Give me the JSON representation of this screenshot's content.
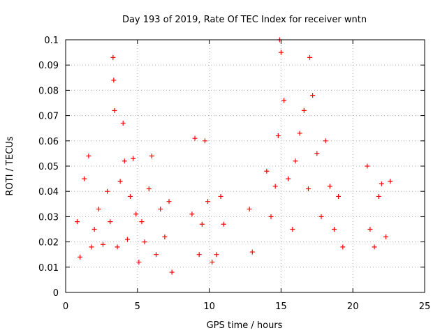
{
  "chart_data": {
    "type": "scatter",
    "title": "Day 193 of 2019, Rate Of TEC Index for receiver wntn",
    "xlabel": "GPS time / hours",
    "ylabel": "ROTI / TECUs",
    "xlim": [
      0,
      25
    ],
    "ylim": [
      0,
      0.1
    ],
    "x_ticks": [
      "0",
      "5",
      "10",
      "15",
      "20",
      "25"
    ],
    "y_ticks": [
      "0",
      "0.01",
      "0.02",
      "0.03",
      "0.04",
      "0.05",
      "0.06",
      "0.07",
      "0.08",
      "0.09",
      "0.1"
    ],
    "grid": true,
    "marker": "+",
    "colors": {
      "points": "#ff0000",
      "grid": "#b0b0b0",
      "axes": "#000000"
    },
    "series": [
      {
        "x": [
          0.8,
          1.0,
          1.3,
          1.6,
          1.8,
          2.0,
          2.3,
          2.6,
          2.9,
          3.1,
          3.3,
          3.35,
          3.4,
          3.6,
          3.8,
          4.0,
          4.1,
          4.3,
          4.5,
          4.7,
          4.9,
          5.1,
          5.3,
          5.5,
          5.8,
          6.0,
          6.3,
          6.6,
          6.9,
          7.2,
          7.4,
          8.8,
          9.0,
          9.3,
          9.5,
          9.7,
          9.9,
          10.2,
          10.5,
          10.8,
          11.0,
          12.8,
          13.0,
          14.0,
          14.3,
          14.6,
          14.8,
          14.9,
          15.0,
          15.2,
          15.5,
          15.8,
          16.0,
          16.3,
          16.6,
          16.9,
          17.0,
          17.2,
          17.5,
          17.8,
          18.1,
          18.4,
          18.7,
          19.0,
          19.3,
          21.0,
          21.2,
          21.5,
          21.8,
          22.0,
          22.3,
          22.6
        ],
        "y": [
          0.028,
          0.014,
          0.045,
          0.054,
          0.018,
          0.025,
          0.033,
          0.019,
          0.04,
          0.028,
          0.093,
          0.084,
          0.072,
          0.018,
          0.044,
          0.067,
          0.052,
          0.021,
          0.038,
          0.053,
          0.031,
          0.012,
          0.028,
          0.02,
          0.041,
          0.054,
          0.015,
          0.033,
          0.022,
          0.036,
          0.008,
          0.031,
          0.061,
          0.015,
          0.027,
          0.06,
          0.036,
          0.012,
          0.015,
          0.038,
          0.027,
          0.033,
          0.016,
          0.048,
          0.03,
          0.042,
          0.062,
          0.1,
          0.095,
          0.076,
          0.045,
          0.025,
          0.052,
          0.063,
          0.072,
          0.041,
          0.093,
          0.078,
          0.055,
          0.03,
          0.06,
          0.042,
          0.025,
          0.038,
          0.018,
          0.05,
          0.025,
          0.018,
          0.038,
          0.043,
          0.022,
          0.044
        ]
      }
    ]
  }
}
